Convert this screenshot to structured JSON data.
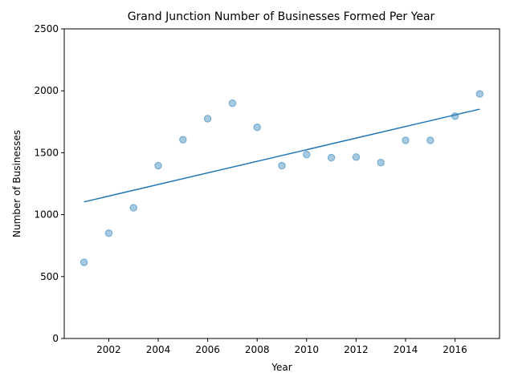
{
  "chart_data": {
    "type": "scatter",
    "title": "Grand Junction Number of Businesses Formed Per Year",
    "xlabel": "Year",
    "ylabel": "Number of Businesses",
    "xlim": [
      2000.2,
      2017.8
    ],
    "ylim": [
      0,
      2500
    ],
    "xticks": [
      2002,
      2004,
      2006,
      2008,
      2010,
      2012,
      2014,
      2016
    ],
    "yticks": [
      0,
      500,
      1000,
      1500,
      2000,
      2500
    ],
    "grid": false,
    "point_color": "#1f77b4",
    "line_color": "#1f77b4",
    "x": [
      2001,
      2002,
      2003,
      2004,
      2005,
      2006,
      2007,
      2008,
      2009,
      2010,
      2011,
      2012,
      2013,
      2014,
      2015,
      2016,
      2017
    ],
    "y": [
      615,
      850,
      1055,
      1395,
      1605,
      1775,
      1900,
      1705,
      1395,
      1485,
      1460,
      1465,
      1420,
      1600,
      1600,
      1795,
      1975
    ],
    "trend_line": {
      "x": [
        2001,
        2017
      ],
      "y": [
        1103,
        1852
      ]
    }
  }
}
